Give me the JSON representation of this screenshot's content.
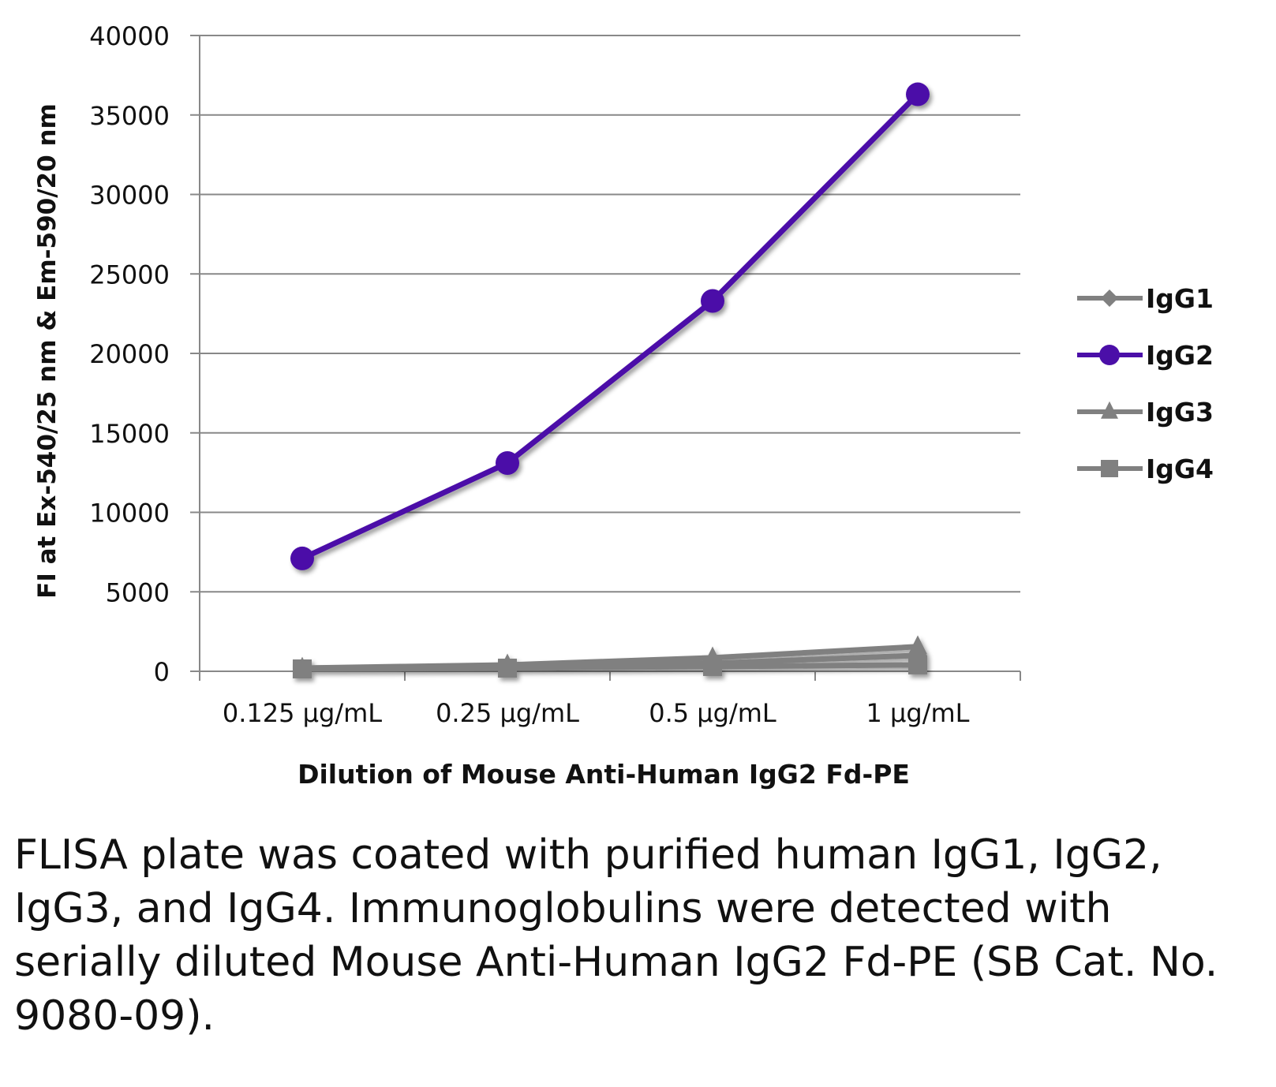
{
  "chart_data": {
    "type": "line",
    "title": "",
    "xlabel": "Dilution of Mouse Anti-Human IgG2 Fd-PE",
    "ylabel": "FI at Ex-540/25 nm & Em-590/20 nm",
    "categories": [
      "0.125 µg/mL",
      "0.25 µg/mL",
      "0.5 µg/mL",
      "1 µg/mL"
    ],
    "ylim": [
      0,
      40000
    ],
    "yticks": [
      0,
      5000,
      10000,
      15000,
      20000,
      25000,
      30000,
      35000,
      40000
    ],
    "grid": true,
    "legend_position": "right",
    "series": [
      {
        "name": "IgG1",
        "marker": "diamond",
        "color": "#808080",
        "values": [
          200,
          300,
          500,
          1000
        ]
      },
      {
        "name": "IgG2",
        "marker": "circle",
        "color": "#4B0FA8",
        "values": [
          7100,
          13100,
          23300,
          36300
        ]
      },
      {
        "name": "IgG3",
        "marker": "triangle",
        "color": "#808080",
        "values": [
          200,
          400,
          850,
          1550
        ]
      },
      {
        "name": "IgG4",
        "marker": "square",
        "color": "#808080",
        "values": [
          150,
          200,
          300,
          400
        ]
      }
    ]
  },
  "caption": "FLISA plate was coated with purified human IgG1, IgG2, IgG3, and IgG4.  Immunoglobulins were detected with serially diluted Mouse Anti-Human IgG2 Fd-PE (SB Cat. No. 9080-09)."
}
